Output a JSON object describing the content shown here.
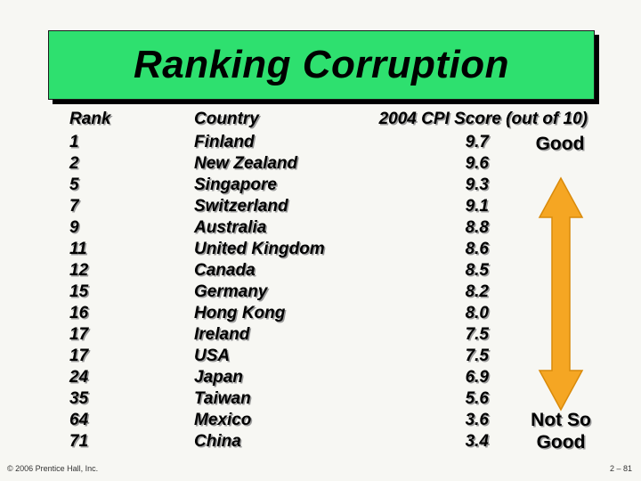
{
  "title": "Ranking Corruption",
  "headers": {
    "rank": "Rank",
    "country": "Country",
    "score": "2004 CPI Score (out of 10)"
  },
  "rows": [
    {
      "rank": "1",
      "country": "Finland",
      "score": "9.7"
    },
    {
      "rank": "2",
      "country": "New Zealand",
      "score": "9.6"
    },
    {
      "rank": "5",
      "country": "Singapore",
      "score": "9.3"
    },
    {
      "rank": "7",
      "country": "Switzerland",
      "score": "9.1"
    },
    {
      "rank": "9",
      "country": "Australia",
      "score": "8.8"
    },
    {
      "rank": "11",
      "country": "United Kingdom",
      "score": "8.6"
    },
    {
      "rank": "12",
      "country": "Canada",
      "score": "8.5"
    },
    {
      "rank": "15",
      "country": "Germany",
      "score": "8.2"
    },
    {
      "rank": "16",
      "country": "Hong Kong",
      "score": "8.0"
    },
    {
      "rank": "17",
      "country": "Ireland",
      "score": "7.5"
    },
    {
      "rank": "17",
      "country": "USA",
      "score": "7.5"
    },
    {
      "rank": "24",
      "country": "Japan",
      "score": "6.9"
    },
    {
      "rank": "35",
      "country": "Taiwan",
      "score": "5.6"
    },
    {
      "rank": "64",
      "country": "Mexico",
      "score": "3.6"
    },
    {
      "rank": "71",
      "country": "China",
      "score": "3.4"
    }
  ],
  "scale": {
    "top_label": "Good",
    "bottom_line1": "Not So",
    "bottom_line2": "Good"
  },
  "footer": {
    "copyright": "© 2006 Prentice Hall, Inc.",
    "page": "2 – 81"
  },
  "colors": {
    "title_bg": "#2ee06f",
    "arrow_fill": "#f5a623",
    "arrow_stroke": "#d98a0a",
    "background": "#f7f7f3"
  }
}
